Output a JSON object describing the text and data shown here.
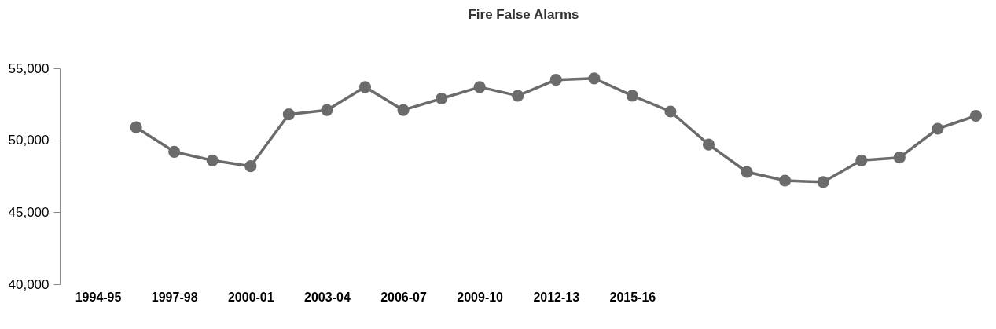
{
  "chart_data": {
    "type": "line",
    "title": "Fire False Alarms",
    "categories": [
      "1994-95",
      null,
      "1997-98",
      null,
      "2000-01",
      null,
      "2003-04",
      null,
      "2006-07",
      null,
      "2009-10",
      null,
      "2012-13",
      null,
      "2015-16",
      null,
      null,
      null,
      null,
      null,
      null,
      null,
      null,
      null
    ],
    "series": [
      {
        "color": "#6b6b6b",
        "values": [
          null,
          50900,
          49200,
          48600,
          48200,
          51800,
          52100,
          53700,
          52100,
          52900,
          53700,
          53100,
          54200,
          54300,
          53100,
          52000,
          49700,
          47800,
          47200,
          47100,
          48600,
          48800,
          50800,
          51700
        ]
      }
    ],
    "ylim": [
      40000,
      55000
    ],
    "yticks": [
      {
        "value": 40000,
        "label": "40,000"
      },
      {
        "value": 45000,
        "label": "45,000"
      },
      {
        "value": 50000,
        "label": "50,000"
      },
      {
        "value": 55000,
        "label": "55,000"
      }
    ],
    "marker": "circle",
    "grid": false,
    "legend": false
  }
}
